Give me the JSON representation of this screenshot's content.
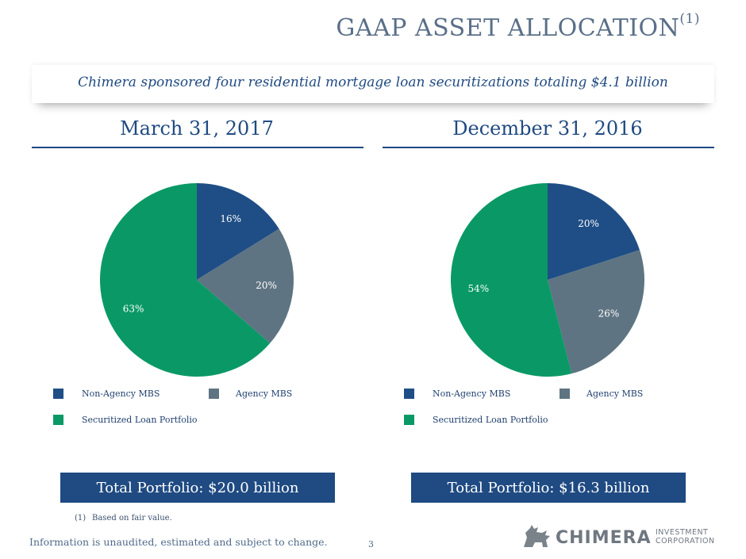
{
  "title": "GAAP ASSET ALLOCATION",
  "title_footnote_ref": "(1)",
  "banner": "Chimera sponsored four residential mortgage loan securitizations totaling $4.1 billion",
  "colors": {
    "non_agency": "#1f4e86",
    "agency": "#5e7482",
    "securitized": "#0a9966",
    "brand_blue": "#1f4a82"
  },
  "chart_data": [
    {
      "type": "pie",
      "title": "March 31, 2017",
      "series": [
        {
          "name": "Non-Agency MBS",
          "value": 16,
          "label": "16%"
        },
        {
          "name": "Agency MBS",
          "value": 20,
          "label": "20%"
        },
        {
          "name": "Securitized Loan Portfolio",
          "value": 63,
          "label": "63%"
        }
      ],
      "legend": "bottom",
      "total": "Total Portfolio: $20.0 billion"
    },
    {
      "type": "pie",
      "title": "December 31, 2016",
      "series": [
        {
          "name": "Non-Agency MBS",
          "value": 20,
          "label": "20%"
        },
        {
          "name": "Agency MBS",
          "value": 26,
          "label": "26%"
        },
        {
          "name": "Securitized Loan Portfolio",
          "value": 54,
          "label": "54%"
        }
      ],
      "legend": "bottom",
      "total": "Total Portfolio: $16.3 billion"
    }
  ],
  "footnote": {
    "number": "(1)",
    "text": "Based on fair value."
  },
  "disclaimer": "Information is unaudited, estimated and subject to change.",
  "page_number": "3",
  "logo": {
    "name": "CHIMERA",
    "line1": "INVESTMENT",
    "line2": "CORPORATION",
    "icon": "chimera-logo-icon"
  }
}
